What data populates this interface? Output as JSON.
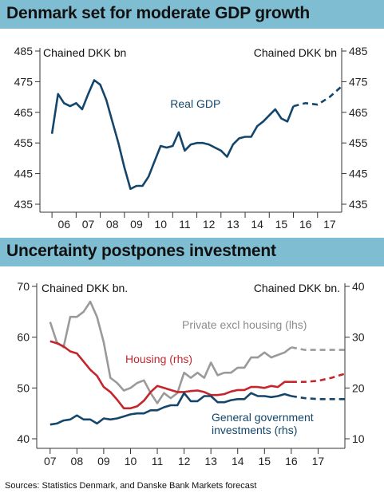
{
  "chart_data": [
    {
      "type": "line",
      "title": "Denmark set for moderate GDP growth",
      "ylabel_left": "Chained DKK bn",
      "ylabel_right": "Chained DKK bn",
      "ylim": [
        435,
        485
      ],
      "yticks": [
        435,
        445,
        455,
        465,
        475,
        485
      ],
      "x_tick_labels": [
        "06",
        "07",
        "08",
        "09",
        "10",
        "11",
        "12",
        "13",
        "14",
        "15",
        "16",
        "17"
      ],
      "x_range": [
        2005.5,
        2018.0
      ],
      "annotation": "Real GDP",
      "series": [
        {
          "name": "Real GDP",
          "color": "#14466b",
          "x": [
            2006.0,
            2006.25,
            2006.5,
            2006.75,
            2007.0,
            2007.25,
            2007.5,
            2007.75,
            2008.0,
            2008.25,
            2008.5,
            2008.75,
            2009.0,
            2009.25,
            2009.5,
            2009.75,
            2010.0,
            2010.25,
            2010.5,
            2010.75,
            2011.0,
            2011.25,
            2011.5,
            2011.75,
            2012.0,
            2012.25,
            2012.5,
            2012.75,
            2013.0,
            2013.25,
            2013.5,
            2013.75,
            2014.0,
            2014.25,
            2014.5,
            2014.75,
            2015.0,
            2015.25,
            2015.5,
            2015.75,
            2016.0
          ],
          "values": [
            458,
            471,
            468,
            467,
            468,
            466,
            471,
            475.5,
            474,
            469,
            462,
            455,
            447,
            440,
            441,
            441,
            444,
            449,
            454,
            453.5,
            454,
            458.5,
            452.5,
            454.5,
            455,
            455,
            454.5,
            453.5,
            452.5,
            450.5,
            454.5,
            456.5,
            457,
            457,
            460.5,
            462,
            464,
            466,
            463,
            462,
            467
          ],
          "forecast_x": [
            2016.0,
            2016.5,
            2017.0,
            2017.5,
            2018.0
          ],
          "forecast_values": [
            467,
            468,
            467.5,
            470,
            473.5
          ]
        }
      ]
    },
    {
      "type": "line",
      "title": "Uncertainty postpones investment",
      "ylabel_left": "Chained DKK bn.",
      "ylabel_right": "Chained DKK bn.",
      "ylim_left": [
        40,
        70
      ],
      "yticks_left": [
        40,
        50,
        60,
        70
      ],
      "ylim_right": [
        10,
        40
      ],
      "yticks_right": [
        10,
        20,
        30,
        40
      ],
      "x_tick_labels": [
        "07",
        "08",
        "09",
        "10",
        "11",
        "12",
        "13",
        "14",
        "15",
        "16",
        "17"
      ],
      "x_range": [
        2006.5,
        2018.0
      ],
      "series": [
        {
          "name": "Private excl housing (lhs)",
          "color": "#9a9a9a",
          "axis": "left",
          "x": [
            2007.0,
            2007.25,
            2007.5,
            2007.75,
            2008.0,
            2008.25,
            2008.5,
            2008.75,
            2009.0,
            2009.25,
            2009.5,
            2009.75,
            2010.0,
            2010.25,
            2010.5,
            2010.75,
            2011.0,
            2011.25,
            2011.5,
            2011.75,
            2012.0,
            2012.25,
            2012.5,
            2012.75,
            2013.0,
            2013.25,
            2013.5,
            2013.75,
            2014.0,
            2014.25,
            2014.5,
            2014.75,
            2015.0,
            2015.25,
            2015.5,
            2015.75,
            2016.0
          ],
          "values": [
            63,
            59,
            58,
            64,
            64,
            65,
            67,
            64,
            59,
            52,
            51,
            49.5,
            50,
            51,
            51.5,
            49,
            47,
            49,
            48,
            49,
            53,
            52,
            53,
            52,
            55,
            52.5,
            53,
            53,
            54,
            54,
            56,
            56,
            57,
            56,
            56.5,
            57,
            58
          ],
          "forecast_x": [
            2016.0,
            2016.5,
            2017.0,
            2017.5,
            2018.0
          ],
          "forecast_values": [
            58,
            57.5,
            57.5,
            57.5,
            57.5
          ]
        },
        {
          "name": "Housing (rhs)",
          "color": "#c4262e",
          "axis": "right",
          "x": [
            2007.0,
            2007.25,
            2007.5,
            2007.75,
            2008.0,
            2008.25,
            2008.5,
            2008.75,
            2009.0,
            2009.25,
            2009.5,
            2009.75,
            2010.0,
            2010.25,
            2010.5,
            2010.75,
            2011.0,
            2011.25,
            2011.5,
            2011.75,
            2012.0,
            2012.25,
            2012.5,
            2012.75,
            2013.0,
            2013.25,
            2013.5,
            2013.75,
            2014.0,
            2014.25,
            2014.5,
            2014.75,
            2015.0,
            2015.25,
            2015.5,
            2015.75,
            2016.0
          ],
          "values": [
            29.2,
            28.8,
            28.2,
            27.2,
            26.8,
            25.2,
            23.6,
            22.4,
            20.2,
            19.2,
            17.7,
            16,
            16,
            16.4,
            17.5,
            19.2,
            20.4,
            20,
            19.6,
            19.2,
            19.2,
            19.4,
            19.5,
            19.2,
            18.6,
            18.6,
            18.8,
            19.3,
            19.6,
            19.6,
            20.2,
            20.2,
            20,
            20.4,
            20.2,
            21.2,
            21.2
          ],
          "forecast_x": [
            2016.0,
            2016.5,
            2017.0,
            2017.5,
            2018.0
          ],
          "forecast_values": [
            21.2,
            21.2,
            21.4,
            22,
            22.8
          ]
        },
        {
          "name": "General government investments (rhs)",
          "color": "#14466b",
          "axis": "right",
          "x": [
            2007.0,
            2007.25,
            2007.5,
            2007.75,
            2008.0,
            2008.25,
            2008.5,
            2008.75,
            2009.0,
            2009.25,
            2009.5,
            2009.75,
            2010.0,
            2010.25,
            2010.5,
            2010.75,
            2011.0,
            2011.25,
            2011.5,
            2011.75,
            2012.0,
            2012.25,
            2012.5,
            2012.75,
            2013.0,
            2013.25,
            2013.5,
            2013.75,
            2014.0,
            2014.25,
            2014.5,
            2014.75,
            2015.0,
            2015.25,
            2015.5,
            2015.75,
            2016.0
          ],
          "values": [
            12.8,
            13,
            13.6,
            13.8,
            14.6,
            13.8,
            13.8,
            13,
            14,
            13.8,
            14,
            14.4,
            14.8,
            15,
            15,
            15.6,
            15.6,
            16.2,
            16.6,
            16.6,
            19,
            17.4,
            17.4,
            18.4,
            18.4,
            17.2,
            17.2,
            17.6,
            17.8,
            17.8,
            19,
            18.4,
            18.4,
            18.2,
            18.4,
            18.8,
            18.4
          ],
          "forecast_x": [
            2016.0,
            2016.5,
            2017.0,
            2017.5,
            2018.0
          ],
          "forecast_values": [
            18.4,
            18,
            17.8,
            17.8,
            17.8
          ]
        }
      ],
      "annotations": {
        "private_label": "Private excl housing (lhs)",
        "housing_label": "Housing (rhs)",
        "government_label_1": "General government",
        "government_label_2": "investments (rhs)"
      }
    }
  ],
  "source": "Sources: Statistics Denmark, and Danske Bank Markets forecast"
}
